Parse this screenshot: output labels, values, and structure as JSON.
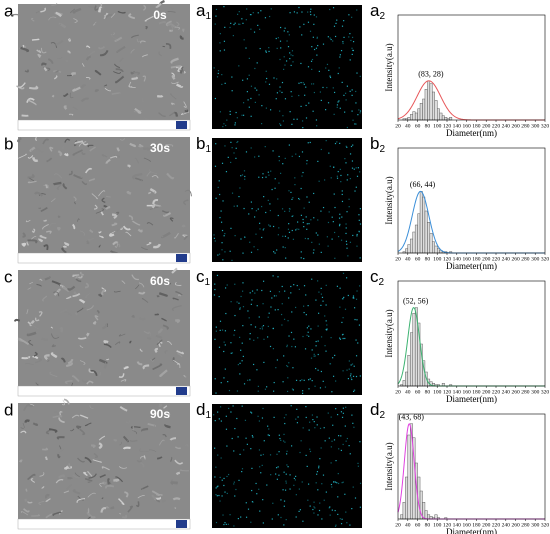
{
  "rows": [
    {
      "letter": "a",
      "time": "0s",
      "map_letter": "a",
      "map_sub": "1"
    },
    {
      "letter": "b",
      "time": "30s",
      "map_letter": "b",
      "map_sub": "1"
    },
    {
      "letter": "c",
      "time": "60s",
      "map_letter": "c",
      "map_sub": "1"
    },
    {
      "letter": "d",
      "time": "90s",
      "map_letter": "d",
      "map_sub": "1"
    }
  ],
  "chart_data": [
    {
      "type": "histogram",
      "panel_letter": "a",
      "panel_sub": "2",
      "xlabel": "Diameter(nm)",
      "ylabel": "Intensity(a.u)",
      "annotation": "(83, 28)",
      "bins": [
        20,
        25,
        30,
        35,
        40,
        45,
        50,
        55,
        60,
        65,
        70,
        75,
        80,
        85,
        90,
        95,
        100,
        105,
        110,
        115,
        120,
        125,
        130
      ],
      "values": [
        0,
        0,
        1,
        1,
        2,
        4,
        6,
        5,
        8,
        12,
        15,
        22,
        28,
        26,
        20,
        14,
        8,
        5,
        3,
        2,
        1,
        2
      ],
      "color": "#dddddd",
      "fit": {
        "mean": 83,
        "peak": 28,
        "sigma": 24,
        "color": "#e8575a"
      },
      "xlim": [
        20,
        320
      ],
      "ylim": [
        0,
        75
      ],
      "xticks": [
        20,
        40,
        60,
        80,
        100,
        120,
        140,
        160,
        180,
        200,
        220,
        240,
        260,
        280,
        300,
        320
      ]
    },
    {
      "type": "histogram",
      "panel_letter": "b",
      "panel_sub": "2",
      "xlabel": "Diameter(nm)",
      "ylabel": "Intensity(a.u)",
      "annotation": "(66, 44)",
      "bins": [
        20,
        25,
        30,
        35,
        40,
        45,
        50,
        55,
        60,
        65,
        70,
        75,
        80,
        85,
        90,
        95,
        100,
        105,
        110,
        115,
        120,
        125,
        130
      ],
      "values": [
        0,
        0,
        1,
        3,
        6,
        10,
        15,
        20,
        28,
        44,
        40,
        30,
        22,
        14,
        8,
        5,
        3,
        2,
        1,
        1,
        0,
        1
      ],
      "color": "#dddddd",
      "fit": {
        "mean": 66,
        "peak": 44,
        "sigma": 17,
        "color": "#3b8fd9"
      },
      "xlim": [
        20,
        320
      ],
      "ylim": [
        0,
        75
      ],
      "xticks": [
        20,
        40,
        60,
        80,
        100,
        120,
        140,
        160,
        180,
        200,
        220,
        240,
        260,
        280,
        300,
        320
      ]
    },
    {
      "type": "histogram",
      "panel_letter": "c",
      "panel_sub": "2",
      "xlabel": "Diameter(nm)",
      "ylabel": "Intensity(a.u)",
      "annotation": "(52, 56)",
      "bins": [
        20,
        25,
        30,
        35,
        40,
        45,
        50,
        55,
        60,
        65,
        70,
        75,
        80,
        85,
        90,
        95,
        100,
        105,
        110,
        115,
        120,
        125,
        130
      ],
      "values": [
        0,
        1,
        4,
        10,
        22,
        38,
        52,
        56,
        45,
        30,
        18,
        10,
        5,
        3,
        2,
        1,
        1,
        0,
        2,
        0,
        0,
        1
      ],
      "color": "#dddddd",
      "fit": {
        "mean": 52,
        "peak": 56,
        "sigma": 12,
        "color": "#3cb371"
      },
      "xlim": [
        20,
        320
      ],
      "ylim": [
        0,
        75
      ],
      "xticks": [
        20,
        40,
        60,
        80,
        100,
        120,
        140,
        160,
        180,
        200,
        220,
        240,
        260,
        280,
        300,
        320
      ]
    },
    {
      "type": "histogram",
      "panel_letter": "d",
      "panel_sub": "2",
      "xlabel": "Diameter(nm)",
      "ylabel": "Intensity(a.u)",
      "annotation": "(43, 68)",
      "bins": [
        20,
        25,
        30,
        35,
        40,
        45,
        50,
        55,
        60,
        65,
        70,
        75,
        80,
        85,
        90,
        95,
        100,
        105,
        110,
        115,
        120,
        125,
        130
      ],
      "values": [
        0,
        3,
        12,
        30,
        60,
        68,
        58,
        40,
        30,
        20,
        12,
        6,
        3,
        2,
        1,
        3,
        1,
        0,
        0,
        1,
        0,
        0
      ],
      "color": "#dddddd",
      "fit": {
        "mean": 43,
        "peak": 68,
        "sigma": 10,
        "color": "#e040e0"
      },
      "xlim": [
        20,
        320
      ],
      "ylim": [
        0,
        75
      ],
      "xticks": [
        20,
        40,
        60,
        80,
        100,
        120,
        140,
        160,
        180,
        200,
        220,
        240,
        260,
        280,
        300,
        320
      ]
    }
  ]
}
